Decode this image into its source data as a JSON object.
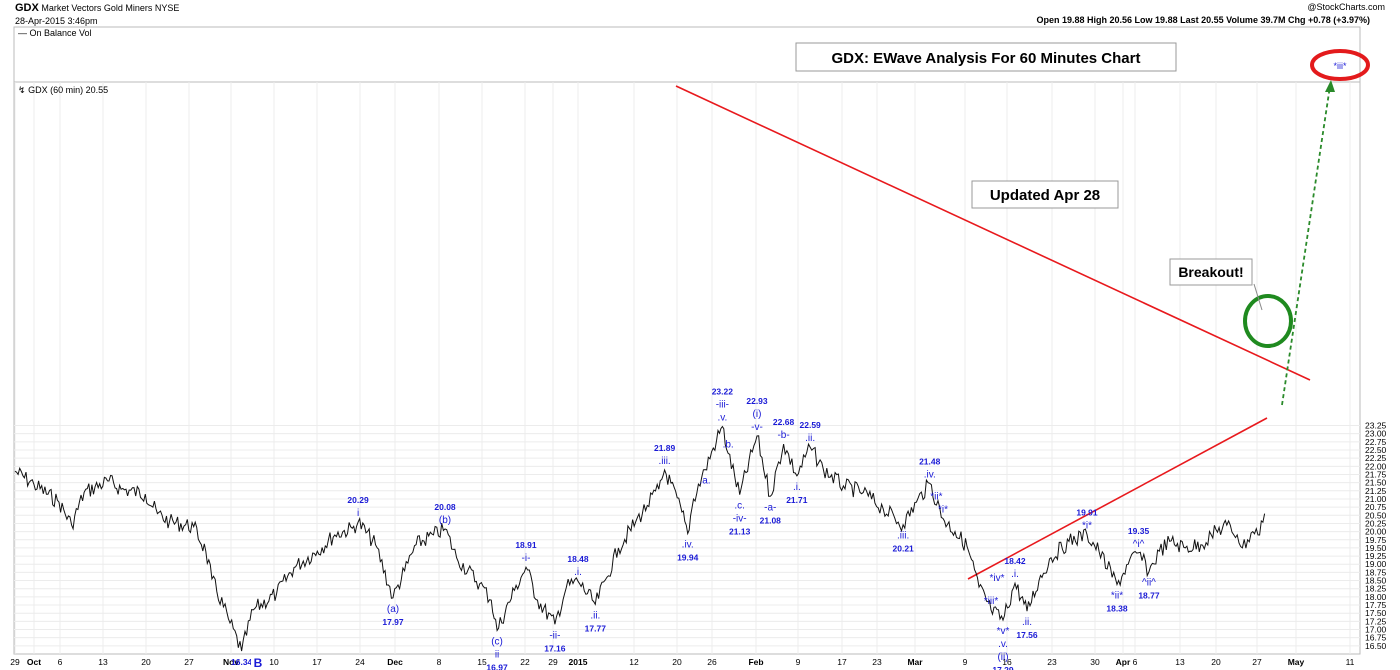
{
  "header": {
    "ticker": "GDX",
    "name": "Market Vectors Gold Miners",
    "exchange": "NYSE",
    "date": "28-Apr-2015 3:46pm",
    "quote_line": "Open 19.88  High 20.56  Low 19.88  Last 20.55  Volume 39.7M  Chg +0.78 (+3.97%)",
    "copyright": "@StockCharts.com",
    "indicator_label": "On Balance Vol",
    "series_label": "GDX (60 min) 20.55"
  },
  "chart_data": {
    "type": "line",
    "title": "GDX: EWave Analysis  For 60 Minutes Chart",
    "subtitle": "Updated Apr 28",
    "callout": "Breakout!",
    "ylim": [
      16.25,
      23.5
    ],
    "y_ticks": [
      "16.50",
      "16.75",
      "17.00",
      "17.25",
      "17.50",
      "17.75",
      "18.00",
      "18.25",
      "18.50",
      "18.75",
      "19.00",
      "19.25",
      "19.50",
      "19.75",
      "20.00",
      "20.25",
      "20.50",
      "20.75",
      "21.00",
      "21.25",
      "21.50",
      "21.75",
      "22.00",
      "22.25",
      "22.50",
      "22.75",
      "23.00",
      "23.25"
    ],
    "x_ticks": [
      "29",
      "Oct",
      "6",
      "13",
      "20",
      "27",
      "Nov",
      "10",
      "17",
      "24",
      "Dec",
      "8",
      "15",
      "22",
      "29",
      "2015",
      "12",
      "20",
      "26",
      "Feb",
      "9",
      "17",
      "23",
      "Mar",
      "9",
      "16",
      "23",
      "30",
      "Apr",
      "6",
      "13",
      "20",
      "27",
      "May",
      "11"
    ],
    "b_marker": "B",
    "series": [
      {
        "points": [
          [
            "Sep 29",
            21.85
          ],
          [
            "Oct 2",
            21.45
          ],
          [
            "Oct 6",
            20.9
          ],
          [
            "Oct 8",
            20.2
          ],
          [
            "Oct 10",
            21.2
          ],
          [
            "Oct 14",
            21.55
          ],
          [
            "Oct 16",
            21.3
          ],
          [
            "Oct 20",
            21.15
          ],
          [
            "Oct 22",
            20.55
          ],
          [
            "Oct 24",
            20.3
          ],
          [
            "Oct 28",
            20.15
          ],
          [
            "Oct 30",
            19.4
          ],
          [
            "Oct 31",
            18.55
          ],
          [
            "Nov 3",
            17.2
          ],
          [
            "Nov 5",
            16.34
          ],
          [
            "Nov 7",
            17.6
          ],
          [
            "Nov 11",
            18.1
          ],
          [
            "Nov 14",
            18.9
          ],
          [
            "Nov 18",
            19.4
          ],
          [
            "Nov 21",
            19.9
          ],
          [
            "Nov 24",
            20.1
          ],
          [
            "Nov 25",
            20.29
          ],
          [
            "Nov 28",
            19.6
          ],
          [
            "Dec 1",
            17.97
          ],
          [
            "Dec 3",
            18.8
          ],
          [
            "Dec 5",
            19.6
          ],
          [
            "Dec 8",
            19.9
          ],
          [
            "Dec 10",
            20.08
          ],
          [
            "Dec 12",
            19.2
          ],
          [
            "Dec 16",
            18.4
          ],
          [
            "Dec 18",
            17.9
          ],
          [
            "Dec 19",
            16.97
          ],
          [
            "Dec 22",
            18.2
          ],
          [
            "Dec 24",
            18.91
          ],
          [
            "Dec 26",
            17.9
          ],
          [
            "Dec 29",
            17.16
          ],
          [
            "Dec 31",
            18.3
          ],
          [
            "Jan 2",
            18.48
          ],
          [
            "Jan 5",
            17.77
          ],
          [
            "Jan 7",
            18.6
          ],
          [
            "Jan 9",
            19.5
          ],
          [
            "Jan 12",
            20.3
          ],
          [
            "Jan 14",
            20.8
          ],
          [
            "Jan 16",
            21.3
          ],
          [
            "Jan 17",
            21.89
          ],
          [
            "Jan 20",
            20.6
          ],
          [
            "Jan 21",
            19.94
          ],
          [
            "Jan 22",
            21.0
          ],
          [
            "Jan 24",
            21.9
          ],
          [
            "Jan 26",
            22.8
          ],
          [
            "Jan 27",
            23.22
          ],
          [
            "Jan 28",
            22.4
          ],
          [
            "Jan 30",
            21.13
          ],
          [
            "Feb 2",
            22.93
          ],
          [
            "Feb 4",
            21.08
          ],
          [
            "Feb 6",
            22.68
          ],
          [
            "Feb 8",
            21.71
          ],
          [
            "Feb 10",
            22.59
          ],
          [
            "Feb 12",
            21.9
          ],
          [
            "Feb 15",
            21.4
          ],
          [
            "Feb 18",
            21.2
          ],
          [
            "Feb 21",
            20.7
          ],
          [
            "Feb 24",
            20.21
          ],
          [
            "Feb 26",
            20.9
          ],
          [
            "Feb 28",
            21.48
          ],
          [
            "Mar 2",
            20.4
          ],
          [
            "Mar 4",
            20.0
          ],
          [
            "Mar 6",
            19.55
          ],
          [
            "Mar 8",
            18.3
          ],
          [
            "Mar 10",
            17.6
          ],
          [
            "Mar 12",
            17.29
          ],
          [
            "Mar 14",
            18.42
          ],
          [
            "Mar 16",
            17.56
          ],
          [
            "Mar 18",
            18.5
          ],
          [
            "Mar 20",
            19.2
          ],
          [
            "Mar 23",
            19.7
          ],
          [
            "Mar 26",
            19.91
          ],
          [
            "Mar 28",
            19.4
          ],
          [
            "Mar 31",
            18.38
          ],
          [
            "Apr 2",
            19.0
          ],
          [
            "Apr 4",
            19.35
          ],
          [
            "Apr 6",
            18.77
          ],
          [
            "Apr 8",
            19.4
          ],
          [
            "Apr 10",
            19.7
          ],
          [
            "Apr 13",
            19.5
          ],
          [
            "Apr 16",
            19.6
          ],
          [
            "Apr 18",
            19.9
          ],
          [
            "Apr 21",
            20.2
          ],
          [
            "Apr 23",
            19.9
          ],
          [
            "Apr 24",
            19.5
          ],
          [
            "Apr 26",
            20.0
          ],
          [
            "Apr 27",
            19.9
          ],
          [
            "Apr 28",
            20.55
          ]
        ]
      }
    ],
    "wave_labels": [
      {
        "date": "Nov 5",
        "price": 16.34,
        "labels": [
          "16.34"
        ],
        "pos": "below"
      },
      {
        "date": "Nov 25",
        "price": 20.29,
        "labels": [
          "20.29",
          "i"
        ],
        "pos": "above"
      },
      {
        "date": "Dec 1",
        "price": 17.97,
        "labels": [
          "(a)",
          "17.97"
        ],
        "pos": "below"
      },
      {
        "date": "Dec 10",
        "price": 20.08,
        "labels": [
          "20.08",
          "(b)"
        ],
        "pos": "above"
      },
      {
        "date": "Dec 19",
        "price": 16.97,
        "labels": [
          "(c)",
          "ii",
          "16.97"
        ],
        "pos": "below"
      },
      {
        "date": "Dec 24",
        "price": 18.91,
        "labels": [
          "18.91",
          "-i-"
        ],
        "pos": "above"
      },
      {
        "date": "Dec 29",
        "price": 17.16,
        "labels": [
          "-ii-",
          "17.16"
        ],
        "pos": "below"
      },
      {
        "date": "Jan 2",
        "price": 18.48,
        "labels": [
          "18.48",
          ".i."
        ],
        "pos": "above"
      },
      {
        "date": "Jan 5",
        "price": 17.77,
        "labels": [
          ".ii.",
          "17.77"
        ],
        "pos": "below"
      },
      {
        "date": "Jan 17",
        "price": 21.89,
        "labels": [
          "21.89",
          ".iii."
        ],
        "pos": "above"
      },
      {
        "date": "Jan 21",
        "price": 19.94,
        "labels": [
          ".iv.",
          "19.94"
        ],
        "pos": "below"
      },
      {
        "date": "Jan 24",
        "price": 21.9,
        "labels": [
          ".a."
        ],
        "pos": "below"
      },
      {
        "date": "Jan 27",
        "price": 23.22,
        "labels": [
          "23.22",
          "-iii-",
          ".v."
        ],
        "pos": "above"
      },
      {
        "date": "Jan 28",
        "price": 22.4,
        "labels": [
          ".b."
        ],
        "pos": "above"
      },
      {
        "date": "Jan 30",
        "price": 21.13,
        "labels": [
          ".c.",
          "-iv-",
          "21.13"
        ],
        "pos": "below"
      },
      {
        "date": "Feb 2",
        "price": 22.93,
        "labels": [
          "22.93",
          "(i)",
          "-v-"
        ],
        "pos": "above"
      },
      {
        "date": "Feb 4",
        "price": 21.08,
        "labels": [
          "-a-",
          "21.08"
        ],
        "pos": "below"
      },
      {
        "date": "Feb 6",
        "price": 22.68,
        "labels": [
          "22.68",
          "-b-"
        ],
        "pos": "above"
      },
      {
        "date": "Feb 8",
        "price": 21.71,
        "labels": [
          ".i.",
          "21.71"
        ],
        "pos": "below"
      },
      {
        "date": "Feb 10",
        "price": 22.59,
        "labels": [
          "22.59",
          ".ii."
        ],
        "pos": "above"
      },
      {
        "date": "Feb 24",
        "price": 20.21,
        "labels": [
          ".iii.",
          "20.21"
        ],
        "pos": "below"
      },
      {
        "date": "Feb 28",
        "price": 21.48,
        "labels": [
          "21.48",
          ".iv."
        ],
        "pos": "above"
      },
      {
        "date": "Mar 2",
        "price": 20.4,
        "labels": [
          "*i*"
        ],
        "pos": "above"
      },
      {
        "date": "Mar 1",
        "price": 20.8,
        "labels": [
          "*ii*"
        ],
        "pos": "above"
      },
      {
        "date": "Mar 10",
        "price": 17.6,
        "labels": [
          "*iii*"
        ],
        "pos": "above"
      },
      {
        "date": "Mar 11",
        "price": 18.3,
        "labels": [
          "*iv*"
        ],
        "pos": "above"
      },
      {
        "date": "Mar 12",
        "price": 17.29,
        "labels": [
          "*v*",
          ".v.",
          "(ii)",
          "17.29"
        ],
        "pos": "below"
      },
      {
        "date": "Mar 14",
        "price": 18.42,
        "labels": [
          "18.42",
          ".i."
        ],
        "pos": "above"
      },
      {
        "date": "Mar 16",
        "price": 17.56,
        "labels": [
          ".ii.",
          "17.56"
        ],
        "pos": "below"
      },
      {
        "date": "Mar 26",
        "price": 19.91,
        "labels": [
          "19.91",
          "*i*"
        ],
        "pos": "above"
      },
      {
        "date": "Mar 31",
        "price": 18.38,
        "labels": [
          "*ii*",
          "18.38"
        ],
        "pos": "below"
      },
      {
        "date": "Apr 4",
        "price": 19.35,
        "labels": [
          "19.35",
          "^i^"
        ],
        "pos": "above"
      },
      {
        "date": "Apr 6",
        "price": 18.77,
        "labels": [
          "^ii^",
          "18.77"
        ],
        "pos": "below"
      }
    ],
    "target_label": "*iii*"
  }
}
